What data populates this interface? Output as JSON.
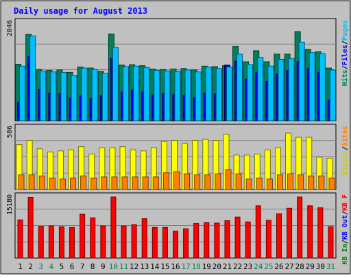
{
  "chart_data": {
    "type": "bar",
    "title": "Daily usage for August 2013",
    "days": [
      "1",
      "2",
      "3",
      "4",
      "5",
      "6",
      "7",
      "8",
      "9",
      "10",
      "11",
      "12",
      "13",
      "14",
      "15",
      "16",
      "17",
      "18",
      "19",
      "20",
      "21",
      "22",
      "23",
      "24",
      "25",
      "26",
      "27",
      "28",
      "29",
      "30",
      "31"
    ],
    "weekend_days": [
      "3",
      "4",
      "10",
      "11",
      "17",
      "18",
      "24",
      "25",
      "31"
    ],
    "panels": [
      {
        "id": "hits",
        "max_label": "2046",
        "ylim": [
          0,
          2046
        ],
        "legend": [
          {
            "label": "Hits",
            "color": "#00805c"
          },
          {
            "label": "Files",
            "color": "#0000ff"
          },
          {
            "label": "Pages",
            "color": "#00c0ff"
          }
        ],
        "series": [
          {
            "name": "Hits",
            "color": "#00805c",
            "values": [
              1180,
              1800,
              1070,
              1050,
              1060,
              1010,
              1120,
              1100,
              1030,
              1810,
              1160,
              1170,
              1150,
              1080,
              1070,
              1080,
              1090,
              1060,
              1140,
              1130,
              1150,
              1550,
              1230,
              1460,
              1230,
              1390,
              1390,
              1860,
              1490,
              1440,
              1100
            ]
          },
          {
            "name": "Files",
            "color": "#0000ff",
            "values": [
              380,
              1340,
              650,
              580,
              570,
              470,
              520,
              460,
              520,
              1300,
              600,
              640,
              600,
              540,
              570,
              550,
              530,
              480,
              580,
              560,
              1160,
              1240,
              870,
              1010,
              820,
              980,
              1050,
              1230,
              1090,
              1010,
              430
            ]
          },
          {
            "name": "Pages",
            "color": "#00c0ff",
            "values": [
              1140,
              1770,
              1040,
              1020,
              1010,
              950,
              1100,
              1070,
              990,
              1530,
              1130,
              1140,
              1110,
              1050,
              1040,
              1030,
              1060,
              1020,
              1120,
              1090,
              1120,
              1390,
              1170,
              1320,
              1140,
              1280,
              1300,
              1640,
              1420,
              1400,
              1060
            ]
          }
        ]
      },
      {
        "id": "visits",
        "max_label": "586",
        "ylim": [
          0,
          586
        ],
        "legend": [
          {
            "label": "Visits",
            "color": "#cccc00"
          },
          {
            "label": "Sites",
            "color": "#ff8000"
          }
        ],
        "series": [
          {
            "name": "Visits",
            "color": "#ffff00",
            "values": [
              430,
              470,
              390,
              360,
              370,
              380,
              410,
              340,
              400,
              400,
              410,
              380,
              370,
              400,
              460,
              470,
              440,
              470,
              480,
              470,
              530,
              330,
              330,
              340,
              380,
              400,
              540,
              500,
              500,
              310,
              300
            ]
          },
          {
            "name": "Sites",
            "color": "#ff8000",
            "values": [
              140,
              140,
              130,
              110,
              100,
              110,
              130,
              110,
              120,
              120,
              120,
              120,
              120,
              120,
              160,
              170,
              150,
              140,
              140,
              150,
              190,
              150,
              100,
              110,
              100,
              140,
              150,
              140,
              130,
              130,
              110
            ]
          }
        ]
      },
      {
        "id": "kbytes",
        "max_label": "15180",
        "ylim": [
          0,
          15180
        ],
        "legend": [
          {
            "label": "KB In",
            "color": "#008000"
          },
          {
            "label": "KB Out",
            "color": "#0000ff"
          },
          {
            "label": "KB F",
            "color": "#ff0000"
          }
        ],
        "series": [
          {
            "name": "KB F",
            "color": "#ff0000",
            "values": [
              9500,
              15100,
              7900,
              8000,
              7800,
              7600,
              10900,
              10000,
              8000,
              15180,
              8000,
              8300,
              9800,
              7600,
              7600,
              6700,
              7300,
              8600,
              8800,
              8700,
              9300,
              10200,
              9000,
              13000,
              9400,
              11000,
              12400,
              15180,
              13000,
              12500,
              7800
            ]
          }
        ]
      }
    ],
    "background": "#c0c0c0",
    "title_color": "#0000ff"
  }
}
